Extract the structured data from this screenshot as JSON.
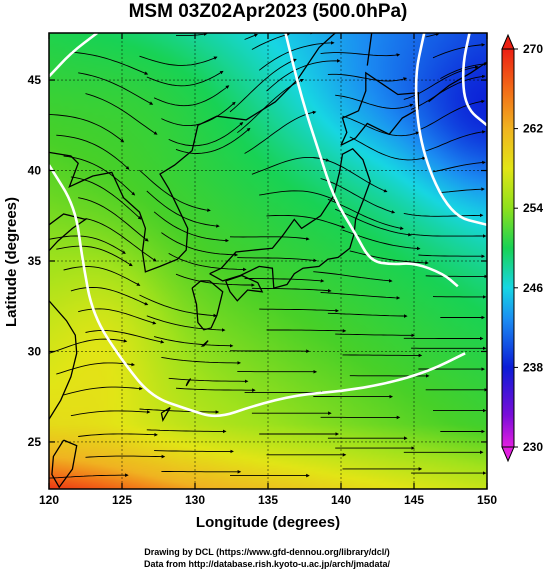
{
  "chart_data": {
    "type": "heatmap",
    "title": "MSM 03Z02Apr2023 (500.0hPa)",
    "xlabel": "Longitude (degrees)",
    "ylabel": "Latitude  (degrees)",
    "xlim": [
      120,
      150
    ],
    "ylim": [
      22.4,
      47.6
    ],
    "x_ticks": [
      "120",
      "125",
      "130",
      "135",
      "140",
      "145",
      "150"
    ],
    "y_ticks": [
      "25",
      "30",
      "35",
      "40",
      "45"
    ],
    "x_tick_values": [
      120,
      125,
      130,
      135,
      140,
      145,
      150
    ],
    "y_tick_values": [
      25,
      30,
      35,
      40,
      45
    ],
    "colorbar": {
      "min": 230,
      "max": 270,
      "ticks": [
        "230",
        "238",
        "246",
        "254",
        "262",
        "270"
      ],
      "tick_values": [
        230,
        238,
        246,
        254,
        262,
        270
      ]
    },
    "white_contours": [
      {
        "points": [
          [
            123.3,
            47.6
          ],
          [
            121.5,
            46.5
          ],
          [
            120,
            45.2
          ]
        ]
      },
      {
        "points": [
          [
            136.2,
            47.6
          ],
          [
            137.3,
            44
          ],
          [
            138.5,
            41
          ],
          [
            139.5,
            38.5
          ],
          [
            141,
            36.5
          ],
          [
            142,
            35
          ],
          [
            143.5,
            34.8
          ],
          [
            145,
            34.9
          ],
          [
            147,
            34.3
          ],
          [
            148,
            33.6
          ]
        ]
      },
      {
        "points": [
          [
            145.7,
            47.6
          ],
          [
            145,
            45
          ],
          [
            145.5,
            41
          ],
          [
            147.5,
            37.5
          ],
          [
            150,
            37
          ]
        ]
      },
      {
        "points": [
          [
            150,
            42.5
          ],
          [
            148.5,
            43.5
          ],
          [
            148.3,
            45.7
          ],
          [
            148.8,
            47.6
          ]
        ]
      },
      {
        "points": [
          [
            120,
            40.3
          ],
          [
            121.8,
            38
          ],
          [
            122.3,
            35
          ],
          [
            123,
            32
          ],
          [
            125,
            29.5
          ],
          [
            127,
            27.5
          ],
          [
            129.5,
            26.8
          ],
          [
            131.5,
            26.3
          ],
          [
            134,
            27
          ],
          [
            137,
            27.6
          ],
          [
            140,
            27.8
          ],
          [
            143,
            28.2
          ],
          [
            146,
            28.9
          ],
          [
            148.5,
            29.9
          ]
        ]
      }
    ]
  },
  "credits": {
    "drawing": "Drawing by DCL (https://www.gfd-dennou.org/library/dcl/)",
    "data": "Data from http://database.rish.kyoto-u.ac.jp/arch/jmadata/"
  }
}
